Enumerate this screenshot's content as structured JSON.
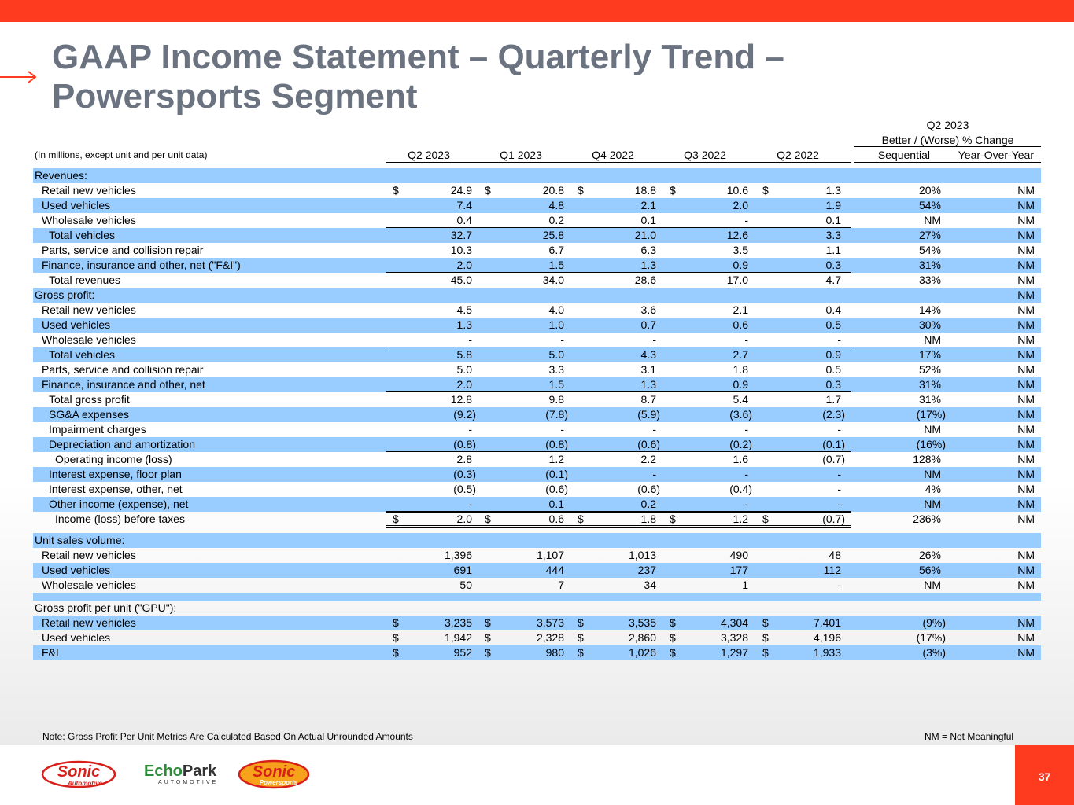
{
  "title_line1": "GAAP Income Statement – Quarterly Trend –",
  "title_line2": "Powersports Segment",
  "units_note": "(In millions, except unit and per unit data)",
  "columns": [
    "Q2 2023",
    "Q1 2023",
    "Q4 2022",
    "Q3 2022",
    "Q2 2022"
  ],
  "change_header_line1": "Q2 2023",
  "change_header_line2": "Better / (Worse) % Change",
  "change_columns": [
    "Sequential",
    "Year-Over-Year"
  ],
  "rows": [
    {
      "label": "Revenues:",
      "indent": 0,
      "blue": true,
      "values": [
        "",
        "",
        "",
        "",
        ""
      ],
      "seq": "",
      "yoy": ""
    },
    {
      "label": "Retail new vehicles",
      "indent": 1,
      "blue": false,
      "dollar": true,
      "values": [
        "24.9",
        "20.8",
        "18.8",
        "10.6",
        "1.3"
      ],
      "seq": "20%",
      "yoy": "NM"
    },
    {
      "label": "Used vehicles",
      "indent": 1,
      "blue": true,
      "values": [
        "7.4",
        "4.8",
        "2.1",
        "2.0",
        "1.9"
      ],
      "seq": "54%",
      "yoy": "NM"
    },
    {
      "label": "Wholesale vehicles",
      "indent": 1,
      "blue": false,
      "underline": true,
      "values": [
        "0.4",
        "0.2",
        "0.1",
        "-",
        "0.1"
      ],
      "seq": "NM",
      "yoy": "NM"
    },
    {
      "label": "Total vehicles",
      "indent": 2,
      "blue": true,
      "values": [
        "32.7",
        "25.8",
        "21.0",
        "12.6",
        "3.3"
      ],
      "seq": "27%",
      "yoy": "NM"
    },
    {
      "label": "Parts, service and collision repair",
      "indent": 1,
      "blue": false,
      "values": [
        "10.3",
        "6.7",
        "6.3",
        "3.5",
        "1.1"
      ],
      "seq": "54%",
      "yoy": "NM"
    },
    {
      "label": "Finance, insurance and other, net (\"F&I\")",
      "indent": 1,
      "blue": true,
      "underline": true,
      "values": [
        "2.0",
        "1.5",
        "1.3",
        "0.9",
        "0.3"
      ],
      "seq": "31%",
      "yoy": "NM"
    },
    {
      "label": "Total revenues",
      "indent": 2,
      "blue": false,
      "values": [
        "45.0",
        "34.0",
        "28.6",
        "17.0",
        "4.7"
      ],
      "seq": "33%",
      "yoy": "NM"
    },
    {
      "label": "Gross profit:",
      "indent": 0,
      "blue": true,
      "values": [
        "",
        "",
        "",
        "",
        ""
      ],
      "seq": "",
      "yoy": "NM"
    },
    {
      "label": "Retail new vehicles",
      "indent": 1,
      "blue": false,
      "values": [
        "4.5",
        "4.0",
        "3.6",
        "2.1",
        "0.4"
      ],
      "seq": "14%",
      "yoy": "NM"
    },
    {
      "label": "Used vehicles",
      "indent": 1,
      "blue": true,
      "values": [
        "1.3",
        "1.0",
        "0.7",
        "0.6",
        "0.5"
      ],
      "seq": "30%",
      "yoy": "NM"
    },
    {
      "label": "Wholesale vehicles",
      "indent": 1,
      "blue": false,
      "underline": true,
      "values": [
        "-",
        "-",
        "-",
        "-",
        "-"
      ],
      "seq": "NM",
      "yoy": "NM"
    },
    {
      "label": "Total vehicles",
      "indent": 2,
      "blue": true,
      "values": [
        "5.8",
        "5.0",
        "4.3",
        "2.7",
        "0.9"
      ],
      "seq": "17%",
      "yoy": "NM"
    },
    {
      "label": "Parts, service and collision repair",
      "indent": 1,
      "blue": false,
      "values": [
        "5.0",
        "3.3",
        "3.1",
        "1.8",
        "0.5"
      ],
      "seq": "52%",
      "yoy": "NM"
    },
    {
      "label": "Finance, insurance and other, net",
      "indent": 1,
      "blue": true,
      "underline": true,
      "values": [
        "2.0",
        "1.5",
        "1.3",
        "0.9",
        "0.3"
      ],
      "seq": "31%",
      "yoy": "NM"
    },
    {
      "label": "Total gross profit",
      "indent": 2,
      "blue": false,
      "values": [
        "12.8",
        "9.8",
        "8.7",
        "5.4",
        "1.7"
      ],
      "seq": "31%",
      "yoy": "NM"
    },
    {
      "label": "SG&A expenses",
      "indent": 2,
      "blue": true,
      "values": [
        "(9.2)",
        "(7.8)",
        "(5.9)",
        "(3.6)",
        "(2.3)"
      ],
      "seq": "(17%)",
      "yoy": "NM"
    },
    {
      "label": "Impairment charges",
      "indent": 2,
      "blue": false,
      "values": [
        "-",
        "-",
        "-",
        "-",
        "-"
      ],
      "seq": "NM",
      "yoy": "NM"
    },
    {
      "label": "Depreciation and amortization",
      "indent": 2,
      "blue": true,
      "underline": true,
      "values": [
        "(0.8)",
        "(0.8)",
        "(0.6)",
        "(0.2)",
        "(0.1)"
      ],
      "seq": "(16%)",
      "yoy": "NM"
    },
    {
      "label": "Operating income (loss)",
      "indent": 3,
      "blue": false,
      "values": [
        "2.8",
        "1.2",
        "2.2",
        "1.6",
        "(0.7)"
      ],
      "seq": "128%",
      "yoy": "NM"
    },
    {
      "label": "Interest expense, floor plan",
      "indent": 2,
      "blue": true,
      "values": [
        "(0.3)",
        "(0.1)",
        "-",
        "-",
        "-"
      ],
      "seq": "NM",
      "yoy": "NM"
    },
    {
      "label": "Interest expense, other, net",
      "indent": 2,
      "blue": false,
      "values": [
        "(0.5)",
        "(0.6)",
        "(0.6)",
        "(0.4)",
        "-"
      ],
      "seq": "4%",
      "yoy": "NM"
    },
    {
      "label": "Other income (expense), net",
      "indent": 2,
      "blue": true,
      "underline": true,
      "values": [
        "-",
        "0.1",
        "0.2",
        "-",
        "-"
      ],
      "seq": "NM",
      "yoy": "NM"
    },
    {
      "label": "Income (loss) before taxes",
      "indent": 3,
      "blue": false,
      "dollar": true,
      "double": true,
      "values": [
        "2.0",
        "0.6",
        "1.8",
        "1.2",
        "(0.7)"
      ],
      "seq": "236%",
      "yoy": "NM"
    },
    {
      "gap": true
    },
    {
      "label": "Unit sales volume:",
      "indent": 0,
      "blue": true,
      "values": [
        "",
        "",
        "",
        "",
        ""
      ],
      "seq": "",
      "yoy": ""
    },
    {
      "label": "Retail new vehicles",
      "indent": 1,
      "blue": false,
      "values": [
        "1,396",
        "1,107",
        "1,013",
        "490",
        "48"
      ],
      "seq": "26%",
      "yoy": "NM"
    },
    {
      "label": "Used vehicles",
      "indent": 1,
      "blue": true,
      "values": [
        "691",
        "444",
        "237",
        "177",
        "112"
      ],
      "seq": "56%",
      "yoy": "NM"
    },
    {
      "label": "Wholesale vehicles",
      "indent": 1,
      "blue": false,
      "values": [
        "50",
        "7",
        "34",
        "1",
        "-"
      ],
      "seq": "NM",
      "yoy": "NM"
    },
    {
      "label": "",
      "indent": 0,
      "blue": true,
      "thin": true,
      "values": [
        "",
        "",
        "",
        "",
        ""
      ],
      "seq": "",
      "yoy": ""
    },
    {
      "label": "Gross profit per unit (\"GPU\"):",
      "indent": 0,
      "blue": false,
      "values": [
        "",
        "",
        "",
        "",
        ""
      ],
      "seq": "",
      "yoy": ""
    },
    {
      "label": "Retail new vehicles",
      "indent": 1,
      "blue": true,
      "dollar": true,
      "values": [
        "3,235",
        "3,573",
        "3,535",
        "4,304",
        "7,401"
      ],
      "seq": "(9%)",
      "yoy": "NM"
    },
    {
      "label": "Used vehicles",
      "indent": 1,
      "blue": false,
      "dollar": true,
      "values": [
        "1,942",
        "2,328",
        "2,860",
        "3,328",
        "4,196"
      ],
      "seq": "(17%)",
      "yoy": "NM"
    },
    {
      "label": "F&I",
      "indent": 1,
      "blue": true,
      "dollar": true,
      "values": [
        "952",
        "980",
        "1,026",
        "1,297",
        "1,933"
      ],
      "seq": "(3%)",
      "yoy": "NM"
    }
  ],
  "dollar_sign": "$",
  "footnote": "Note: Gross Profit Per Unit Metrics Are Calculated Based On Actual Unrounded Amounts",
  "nm_note": "NM = Not Meaningful",
  "page_number": "37",
  "logos": {
    "sonic_automotive": {
      "main": "Sonic",
      "sub": "Automotive"
    },
    "echopark": {
      "main_left": "Echo",
      "main_right": "Park",
      "sub": "AUTOMOTIVE"
    },
    "sonic_powersports": {
      "main": "Sonic",
      "sub": "Powersports"
    }
  },
  "colors": {
    "accent": "#ff3b1f",
    "row_blue": "#99ccff",
    "title_gray": "#6b7380",
    "echopark_green": "#2e8b3a"
  }
}
